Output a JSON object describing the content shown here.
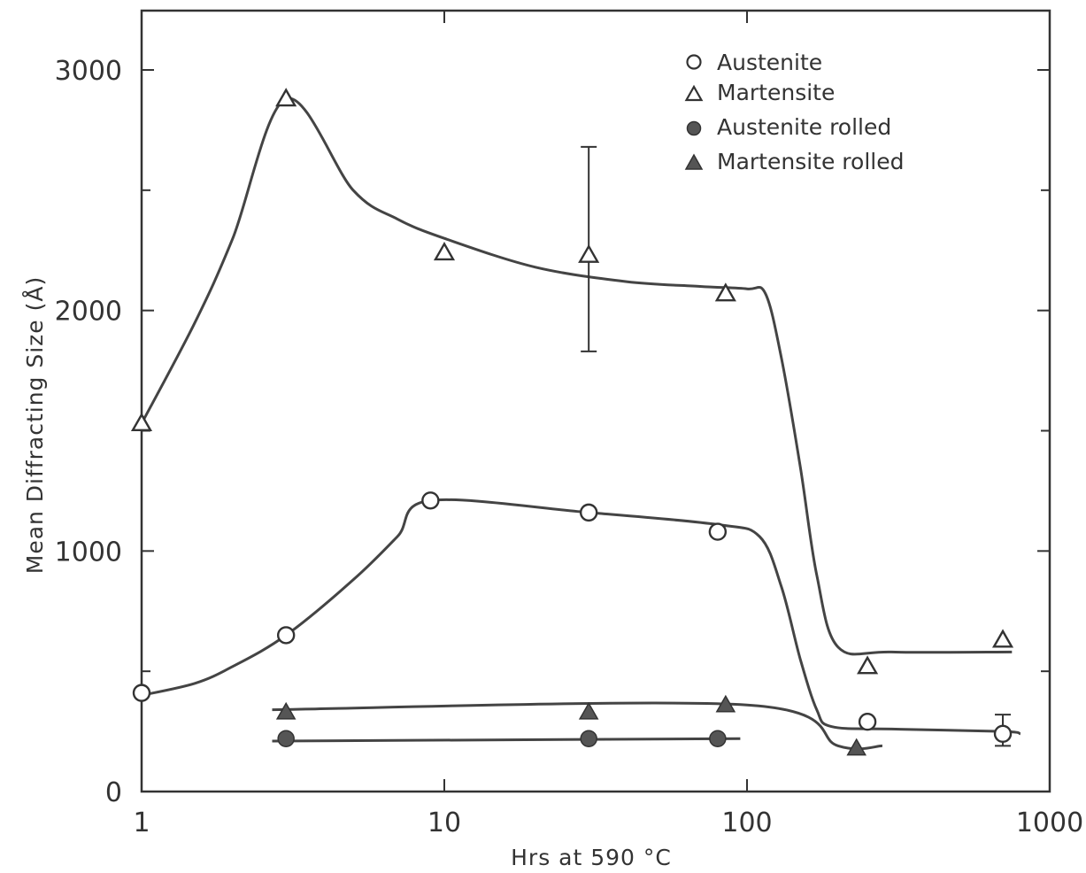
{
  "chart_data": {
    "type": "line",
    "title": "",
    "xlabel": "Hrs at 590 °C",
    "ylabel": "Mean Diffracting Size (Å)",
    "x_scale": "log",
    "xlim": [
      1,
      1000
    ],
    "ylim": [
      0,
      3000
    ],
    "x_ticks": [
      {
        "value": 1,
        "label": "1"
      },
      {
        "value": 10,
        "label": "10"
      },
      {
        "value": 100,
        "label": "100"
      },
      {
        "value": 1000,
        "label": "1000"
      }
    ],
    "y_ticks": [
      {
        "value": 0,
        "label": "0"
      },
      {
        "value": 1000,
        "label": "1000"
      },
      {
        "value": 2000,
        "label": "2000"
      },
      {
        "value": 3000,
        "label": "3000"
      }
    ],
    "y_minor_ticks": [
      500,
      1500,
      2500
    ],
    "grid": false,
    "legend_position": "top-right",
    "series": [
      {
        "name": "Austenite",
        "marker": "open-circle",
        "points": [
          {
            "x": 1,
            "y": 410
          },
          {
            "x": 3,
            "y": 650
          },
          {
            "x": 9,
            "y": 1210
          },
          {
            "x": 30,
            "y": 1160
          },
          {
            "x": 80,
            "y": 1080
          },
          {
            "x": 250,
            "y": 290
          },
          {
            "x": 700,
            "y": 240
          }
        ],
        "curve": [
          [
            1,
            400
          ],
          [
            1.5,
            450
          ],
          [
            2,
            520
          ],
          [
            3,
            650
          ],
          [
            5,
            880
          ],
          [
            7,
            1060
          ],
          [
            9,
            1210
          ],
          [
            30,
            1160
          ],
          [
            80,
            1110
          ],
          [
            110,
            1060
          ],
          [
            130,
            850
          ],
          [
            150,
            550
          ],
          [
            170,
            340
          ],
          [
            190,
            270
          ],
          [
            300,
            260
          ],
          [
            700,
            250
          ],
          [
            800,
            240
          ]
        ],
        "error_bars": [
          {
            "x": 700,
            "low": 190,
            "high": 320
          }
        ]
      },
      {
        "name": "Martensite",
        "marker": "open-triangle",
        "points": [
          {
            "x": 1,
            "y": 1530
          },
          {
            "x": 3,
            "y": 2880
          },
          {
            "x": 10,
            "y": 2240
          },
          {
            "x": 30,
            "y": 2230
          },
          {
            "x": 85,
            "y": 2070
          },
          {
            "x": 250,
            "y": 520
          },
          {
            "x": 700,
            "y": 630
          }
        ],
        "curve": [
          [
            1,
            1530
          ],
          [
            1.5,
            1950
          ],
          [
            2,
            2300
          ],
          [
            3,
            2880
          ],
          [
            5,
            2500
          ],
          [
            7,
            2380
          ],
          [
            10,
            2300
          ],
          [
            20,
            2180
          ],
          [
            40,
            2120
          ],
          [
            70,
            2100
          ],
          [
            100,
            2090
          ],
          [
            115,
            2070
          ],
          [
            130,
            1800
          ],
          [
            150,
            1350
          ],
          [
            170,
            900
          ],
          [
            200,
            600
          ],
          [
            300,
            580
          ],
          [
            750,
            580
          ]
        ],
        "error_bars": [
          {
            "x": 30,
            "low": 1830,
            "high": 2680
          }
        ]
      },
      {
        "name": "Austenite rolled",
        "marker": "filled-circle",
        "points": [
          {
            "x": 3,
            "y": 220
          },
          {
            "x": 30,
            "y": 220
          },
          {
            "x": 80,
            "y": 220
          }
        ],
        "curve": [
          [
            2.7,
            210
          ],
          [
            95,
            220
          ]
        ]
      },
      {
        "name": "Martensite rolled",
        "marker": "filled-triangle",
        "points": [
          {
            "x": 3,
            "y": 330
          },
          {
            "x": 30,
            "y": 330
          },
          {
            "x": 85,
            "y": 360
          }
        ],
        "curve": [
          [
            2.7,
            340
          ],
          [
            100,
            360
          ],
          [
            200,
            190
          ],
          [
            280,
            190
          ]
        ],
        "extra_points": [
          {
            "x": 230,
            "y": 180
          }
        ]
      }
    ]
  }
}
